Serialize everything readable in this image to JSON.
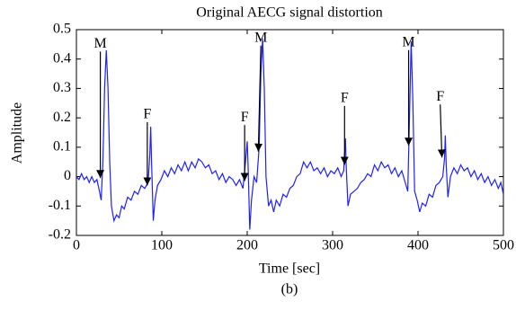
{
  "chart_data": {
    "type": "line",
    "title": "Original AECG signal distortion",
    "xlabel": "Time [sec]",
    "ylabel": "Amplitude",
    "caption": "(b)",
    "color": "#1f1fff",
    "xlim": [
      0,
      500
    ],
    "ylim": [
      -0.2,
      0.5
    ],
    "xticks": [
      0,
      100,
      200,
      300,
      400,
      500
    ],
    "yticks": [
      -0.2,
      -0.1,
      0,
      0.1,
      0.2,
      0.3,
      0.4,
      0.5
    ],
    "grid": false,
    "x": [
      0,
      3,
      6,
      9,
      12,
      15,
      18,
      21,
      24,
      27,
      29,
      31,
      33,
      35,
      37,
      39,
      41,
      44,
      47,
      50,
      53,
      56,
      60,
      64,
      68,
      72,
      76,
      80,
      84,
      86,
      87,
      88,
      90,
      92,
      95,
      99,
      103,
      107,
      111,
      115,
      119,
      123,
      127,
      131,
      135,
      139,
      143,
      147,
      151,
      155,
      159,
      163,
      167,
      171,
      175,
      179,
      183,
      187,
      191,
      195,
      198,
      200,
      201,
      203,
      205,
      208,
      211,
      214,
      216,
      218,
      220,
      222,
      225,
      228,
      231,
      234,
      238,
      242,
      246,
      250,
      254,
      258,
      262,
      266,
      270,
      274,
      278,
      282,
      286,
      290,
      294,
      298,
      302,
      306,
      310,
      313,
      315,
      316,
      318,
      321,
      325,
      329,
      333,
      337,
      341,
      345,
      349,
      353,
      357,
      361,
      365,
      369,
      373,
      377,
      381,
      385,
      388,
      390,
      392,
      394,
      396,
      399,
      402,
      405,
      409,
      413,
      417,
      421,
      425,
      429,
      431,
      432,
      433,
      435,
      438,
      442,
      446,
      450,
      454,
      458,
      462,
      466,
      470,
      474,
      478,
      482,
      486,
      490,
      494,
      497,
      500
    ],
    "values": [
      0,
      -0.01,
      0.01,
      -0.01,
      0,
      -0.02,
      0,
      -0.02,
      -0.01,
      -0.05,
      -0.08,
      0.05,
      0.3,
      0.43,
      0.3,
      0.05,
      -0.1,
      -0.15,
      -0.13,
      -0.14,
      -0.1,
      -0.11,
      -0.07,
      -0.08,
      -0.05,
      -0.06,
      -0.03,
      -0.04,
      -0.02,
      0.08,
      0.17,
      0.05,
      -0.15,
      -0.08,
      -0.03,
      -0.01,
      0.02,
      0,
      0.03,
      0.01,
      0.04,
      0.02,
      0.05,
      0.02,
      0.05,
      0.03,
      0.06,
      0.05,
      0.03,
      0.04,
      0.01,
      0.02,
      -0.01,
      0.01,
      -0.02,
      0,
      -0.01,
      -0.03,
      -0.01,
      -0.04,
      0.05,
      0.12,
      0.04,
      -0.18,
      -0.08,
      0,
      -0.02,
      0.1,
      0.35,
      0.47,
      0.3,
      0,
      -0.1,
      -0.08,
      -0.12,
      -0.08,
      -0.1,
      -0.06,
      -0.07,
      -0.04,
      -0.03,
      0,
      0.01,
      0.05,
      0.03,
      0.05,
      0.02,
      0.03,
      0.01,
      0.03,
      0,
      0.02,
      0.01,
      0.03,
      0,
      0.02,
      0.13,
      0.03,
      -0.1,
      -0.06,
      -0.05,
      -0.04,
      -0.02,
      -0.01,
      0.01,
      0,
      0.04,
      0.02,
      0.05,
      0.03,
      0.04,
      0.01,
      0.03,
      0,
      0.02,
      -0.02,
      -0.05,
      0.2,
      0.46,
      0.25,
      -0.05,
      -0.08,
      -0.12,
      -0.09,
      -0.1,
      -0.06,
      -0.07,
      -0.03,
      -0.02,
      0,
      0.06,
      0.14,
      0.04,
      -0.07,
      0,
      0.03,
      0.01,
      0.04,
      0.02,
      0.03,
      0,
      0.02,
      -0.01,
      0.01,
      -0.02,
      0,
      -0.03,
      -0.01,
      -0.04,
      -0.02,
      -0.06
    ],
    "annotations": [
      {
        "text": "M",
        "x": 28,
        "y": 0.45,
        "xy": [
          28,
          -0.005
        ]
      },
      {
        "text": "F",
        "x": 83,
        "y": 0.21,
        "xy": [
          83,
          -0.03
        ]
      },
      {
        "text": "F",
        "x": 197,
        "y": 0.2,
        "xy": [
          197,
          -0.015
        ]
      },
      {
        "text": "M",
        "x": 216,
        "y": 0.47,
        "xy": [
          213,
          0.085
        ]
      },
      {
        "text": "F",
        "x": 314,
        "y": 0.265,
        "xy": [
          314,
          0.04
        ]
      },
      {
        "text": "M",
        "x": 389,
        "y": 0.455,
        "xy": [
          389,
          0.105
        ]
      },
      {
        "text": "F",
        "x": 426,
        "y": 0.27,
        "xy": [
          428,
          0.065
        ]
      }
    ]
  }
}
